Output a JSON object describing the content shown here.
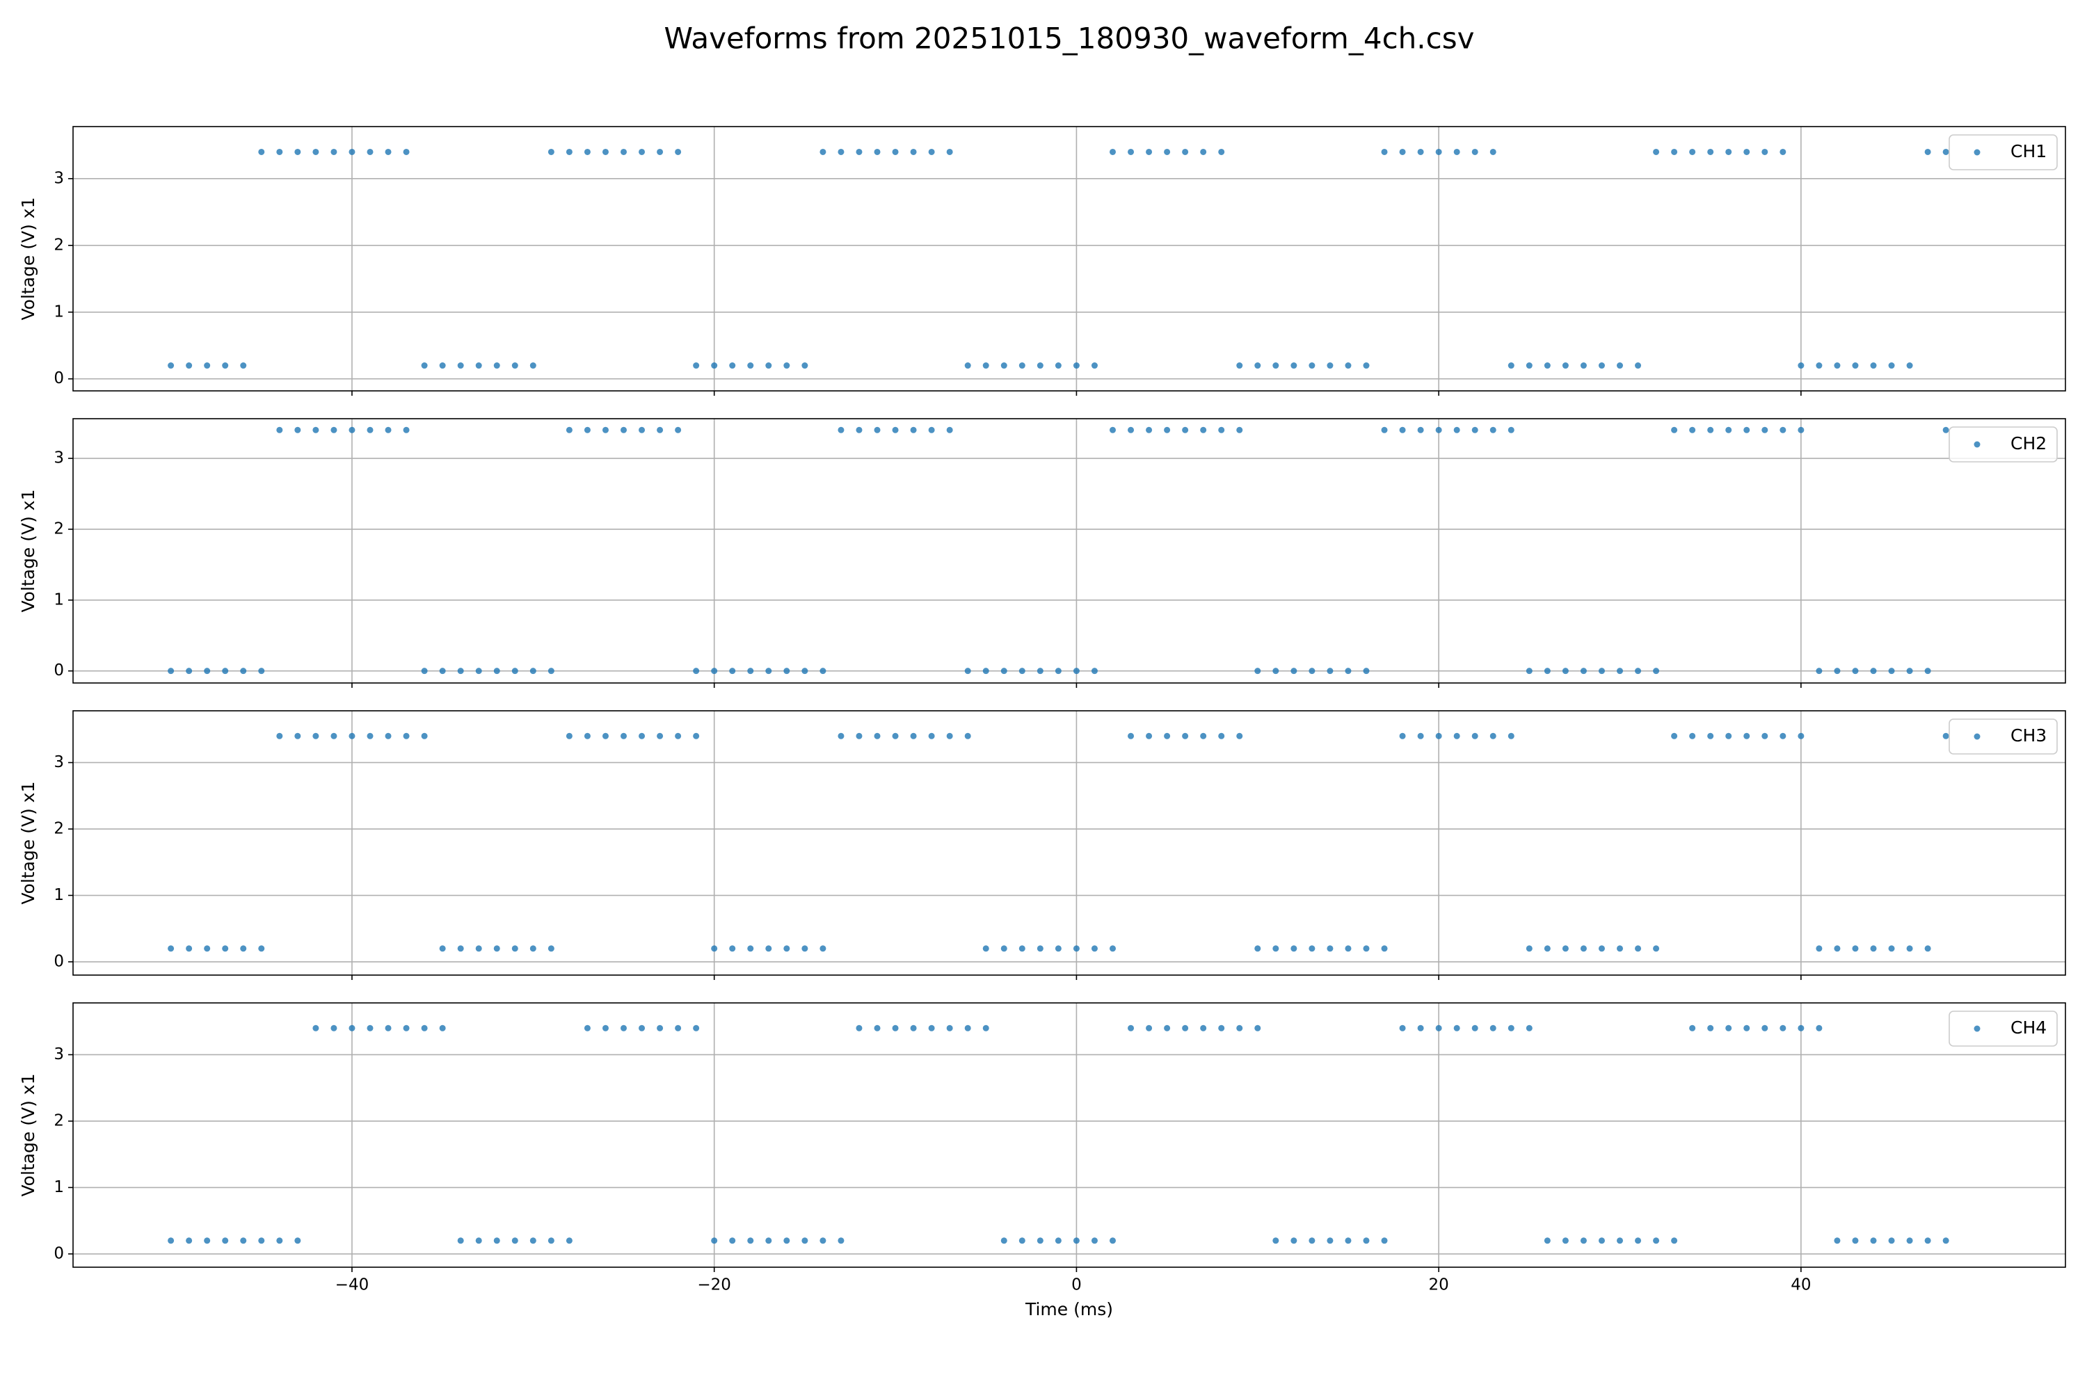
{
  "title": "Waveforms from 20251015_180930_waveform_4ch.csv",
  "chart_data": [
    {
      "type": "scatter",
      "ylabel": "Voltage (V) x1",
      "grid": true,
      "legend": "upper right",
      "xlim": [
        -55.4,
        54.6
      ],
      "ylim": [
        -0.18,
        3.78
      ],
      "yticks": [
        0,
        1,
        2,
        3
      ],
      "x": [
        -50,
        -49,
        -48,
        -47,
        -46,
        -45,
        -44,
        -43,
        -42,
        -41,
        -40,
        -39,
        -38,
        -37,
        -36,
        -35,
        -34,
        -33,
        -32,
        -31,
        -30,
        -29,
        -28,
        -27,
        -26,
        -25,
        -24,
        -23,
        -22,
        -21,
        -20,
        -19,
        -18,
        -17,
        -16,
        -15,
        -14,
        -13,
        -12,
        -11,
        -10,
        -9,
        -8,
        -7,
        -6,
        -5,
        -4,
        -3,
        -2,
        -1,
        0,
        1,
        2,
        3,
        4,
        5,
        6,
        7,
        8,
        9,
        10,
        11,
        12,
        13,
        14,
        15,
        16,
        17,
        18,
        19,
        20,
        21,
        22,
        23,
        24,
        25,
        26,
        27,
        28,
        29,
        30,
        31,
        32,
        33,
        34,
        35,
        36,
        37,
        38,
        39,
        40,
        41,
        42,
        43,
        44,
        45,
        46,
        47,
        48
      ],
      "series": [
        {
          "name": "CH1",
          "color": "#1f77b4",
          "values": [
            0.2,
            0.2,
            0.2,
            0.2,
            0.2,
            3.4,
            3.4,
            3.4,
            3.4,
            3.4,
            3.4,
            3.4,
            3.4,
            3.4,
            0.2,
            0.2,
            0.2,
            0.2,
            0.2,
            0.2,
            0.2,
            3.4,
            3.4,
            3.4,
            3.4,
            3.4,
            3.4,
            3.4,
            3.4,
            0.2,
            0.2,
            0.2,
            0.2,
            0.2,
            0.2,
            0.2,
            3.4,
            3.4,
            3.4,
            3.4,
            3.4,
            3.4,
            3.4,
            3.4,
            0.2,
            0.2,
            0.2,
            0.2,
            0.2,
            0.2,
            0.2,
            0.2,
            3.4,
            3.4,
            3.4,
            3.4,
            3.4,
            3.4,
            3.4,
            0.2,
            0.2,
            0.2,
            0.2,
            0.2,
            0.2,
            0.2,
            0.2,
            3.4,
            3.4,
            3.4,
            3.4,
            3.4,
            3.4,
            3.4,
            0.2,
            0.2,
            0.2,
            0.2,
            0.2,
            0.2,
            0.2,
            0.2,
            3.4,
            3.4,
            3.4,
            3.4,
            3.4,
            3.4,
            3.4,
            3.4,
            0.2,
            0.2,
            0.2,
            0.2,
            0.2,
            0.2,
            0.2,
            3.4,
            3.4
          ]
        }
      ]
    },
    {
      "type": "scatter",
      "ylabel": "Voltage (V) x1",
      "grid": true,
      "legend": "upper right",
      "xlim": [
        -55.4,
        54.6
      ],
      "ylim": [
        -0.17,
        3.56
      ],
      "yticks": [
        0,
        1,
        2,
        3
      ],
      "x": [
        -50,
        -49,
        -48,
        -47,
        -46,
        -45,
        -44,
        -43,
        -42,
        -41,
        -40,
        -39,
        -38,
        -37,
        -36,
        -35,
        -34,
        -33,
        -32,
        -31,
        -30,
        -29,
        -28,
        -27,
        -26,
        -25,
        -24,
        -23,
        -22,
        -21,
        -20,
        -19,
        -18,
        -17,
        -16,
        -15,
        -14,
        -13,
        -12,
        -11,
        -10,
        -9,
        -8,
        -7,
        -6,
        -5,
        -4,
        -3,
        -2,
        -1,
        0,
        1,
        2,
        3,
        4,
        5,
        6,
        7,
        8,
        9,
        10,
        11,
        12,
        13,
        14,
        15,
        16,
        17,
        18,
        19,
        20,
        21,
        22,
        23,
        24,
        25,
        26,
        27,
        28,
        29,
        30,
        31,
        32,
        33,
        34,
        35,
        36,
        37,
        38,
        39,
        40,
        41,
        42,
        43,
        44,
        45,
        46,
        47,
        48
      ],
      "series": [
        {
          "name": "CH2",
          "color": "#1f77b4",
          "values": [
            0,
            0,
            0,
            0,
            0,
            0,
            3.4,
            3.4,
            3.4,
            3.4,
            3.4,
            3.4,
            3.4,
            3.4,
            0,
            0,
            0,
            0,
            0,
            0,
            0,
            0,
            3.4,
            3.4,
            3.4,
            3.4,
            3.4,
            3.4,
            3.4,
            0,
            0,
            0,
            0,
            0,
            0,
            0,
            0,
            3.4,
            3.4,
            3.4,
            3.4,
            3.4,
            3.4,
            3.4,
            0,
            0,
            0,
            0,
            0,
            0,
            0,
            0,
            3.4,
            3.4,
            3.4,
            3.4,
            3.4,
            3.4,
            3.4,
            3.4,
            0,
            0,
            0,
            0,
            0,
            0,
            0,
            3.4,
            3.4,
            3.4,
            3.4,
            3.4,
            3.4,
            3.4,
            3.4,
            0,
            0,
            0,
            0,
            0,
            0,
            0,
            0,
            3.4,
            3.4,
            3.4,
            3.4,
            3.4,
            3.4,
            3.4,
            3.4,
            0,
            0,
            0,
            0,
            0,
            0,
            0,
            3.4
          ]
        }
      ]
    },
    {
      "type": "scatter",
      "ylabel": "Voltage (V) x1",
      "grid": true,
      "legend": "upper right",
      "xlim": [
        -55.4,
        54.6
      ],
      "ylim": [
        -0.2,
        3.78
      ],
      "yticks": [
        0,
        1,
        2,
        3
      ],
      "x": [
        -50,
        -49,
        -48,
        -47,
        -46,
        -45,
        -44,
        -43,
        -42,
        -41,
        -40,
        -39,
        -38,
        -37,
        -36,
        -35,
        -34,
        -33,
        -32,
        -31,
        -30,
        -29,
        -28,
        -27,
        -26,
        -25,
        -24,
        -23,
        -22,
        -21,
        -20,
        -19,
        -18,
        -17,
        -16,
        -15,
        -14,
        -13,
        -12,
        -11,
        -10,
        -9,
        -8,
        -7,
        -6,
        -5,
        -4,
        -3,
        -2,
        -1,
        0,
        1,
        2,
        3,
        4,
        5,
        6,
        7,
        8,
        9,
        10,
        11,
        12,
        13,
        14,
        15,
        16,
        17,
        18,
        19,
        20,
        21,
        22,
        23,
        24,
        25,
        26,
        27,
        28,
        29,
        30,
        31,
        32,
        33,
        34,
        35,
        36,
        37,
        38,
        39,
        40,
        41,
        42,
        43,
        44,
        45,
        46,
        47,
        48
      ],
      "series": [
        {
          "name": "CH3",
          "color": "#1f77b4",
          "values": [
            0.2,
            0.2,
            0.2,
            0.2,
            0.2,
            0.2,
            3.4,
            3.4,
            3.4,
            3.4,
            3.4,
            3.4,
            3.4,
            3.4,
            3.4,
            0.2,
            0.2,
            0.2,
            0.2,
            0.2,
            0.2,
            0.2,
            3.4,
            3.4,
            3.4,
            3.4,
            3.4,
            3.4,
            3.4,
            3.4,
            0.2,
            0.2,
            0.2,
            0.2,
            0.2,
            0.2,
            0.2,
            3.4,
            3.4,
            3.4,
            3.4,
            3.4,
            3.4,
            3.4,
            3.4,
            0.2,
            0.2,
            0.2,
            0.2,
            0.2,
            0.2,
            0.2,
            0.2,
            3.4,
            3.4,
            3.4,
            3.4,
            3.4,
            3.4,
            3.4,
            0.2,
            0.2,
            0.2,
            0.2,
            0.2,
            0.2,
            0.2,
            0.2,
            3.4,
            3.4,
            3.4,
            3.4,
            3.4,
            3.4,
            3.4,
            0.2,
            0.2,
            0.2,
            0.2,
            0.2,
            0.2,
            0.2,
            0.2,
            3.4,
            3.4,
            3.4,
            3.4,
            3.4,
            3.4,
            3.4,
            3.4,
            0.2,
            0.2,
            0.2,
            0.2,
            0.2,
            0.2,
            0.2,
            3.4
          ]
        }
      ]
    },
    {
      "type": "scatter",
      "ylabel": "Voltage (V) x1",
      "xlabel": "Time (ms)",
      "grid": true,
      "legend": "upper right",
      "xlim": [
        -55.4,
        54.6
      ],
      "ylim": [
        -0.2,
        3.78
      ],
      "yticks": [
        0,
        1,
        2,
        3
      ],
      "xticks": [
        {
          "value": -40,
          "label": "−40"
        },
        {
          "value": -20,
          "label": "−20"
        },
        0,
        20,
        40
      ],
      "x": [
        -50,
        -49,
        -48,
        -47,
        -46,
        -45,
        -44,
        -43,
        -42,
        -41,
        -40,
        -39,
        -38,
        -37,
        -36,
        -35,
        -34,
        -33,
        -32,
        -31,
        -30,
        -29,
        -28,
        -27,
        -26,
        -25,
        -24,
        -23,
        -22,
        -21,
        -20,
        -19,
        -18,
        -17,
        -16,
        -15,
        -14,
        -13,
        -12,
        -11,
        -10,
        -9,
        -8,
        -7,
        -6,
        -5,
        -4,
        -3,
        -2,
        -1,
        0,
        1,
        2,
        3,
        4,
        5,
        6,
        7,
        8,
        9,
        10,
        11,
        12,
        13,
        14,
        15,
        16,
        17,
        18,
        19,
        20,
        21,
        22,
        23,
        24,
        25,
        26,
        27,
        28,
        29,
        30,
        31,
        32,
        33,
        34,
        35,
        36,
        37,
        38,
        39,
        40,
        41,
        42,
        43,
        44,
        45,
        46,
        47,
        48
      ],
      "series": [
        {
          "name": "CH4",
          "color": "#1f77b4",
          "values": [
            0.2,
            0.2,
            0.2,
            0.2,
            0.2,
            0.2,
            0.2,
            0.2,
            3.4,
            3.4,
            3.4,
            3.4,
            3.4,
            3.4,
            3.4,
            3.4,
            0.2,
            0.2,
            0.2,
            0.2,
            0.2,
            0.2,
            0.2,
            3.4,
            3.4,
            3.4,
            3.4,
            3.4,
            3.4,
            3.4,
            0.2,
            0.2,
            0.2,
            0.2,
            0.2,
            0.2,
            0.2,
            0.2,
            3.4,
            3.4,
            3.4,
            3.4,
            3.4,
            3.4,
            3.4,
            3.4,
            0.2,
            0.2,
            0.2,
            0.2,
            0.2,
            0.2,
            0.2,
            3.4,
            3.4,
            3.4,
            3.4,
            3.4,
            3.4,
            3.4,
            3.4,
            0.2,
            0.2,
            0.2,
            0.2,
            0.2,
            0.2,
            0.2,
            3.4,
            3.4,
            3.4,
            3.4,
            3.4,
            3.4,
            3.4,
            3.4,
            0.2,
            0.2,
            0.2,
            0.2,
            0.2,
            0.2,
            0.2,
            0.2,
            3.4,
            3.4,
            3.4,
            3.4,
            3.4,
            3.4,
            3.4,
            3.4,
            0.2,
            0.2,
            0.2,
            0.2,
            0.2,
            0.2,
            0.2
          ]
        }
      ]
    }
  ]
}
